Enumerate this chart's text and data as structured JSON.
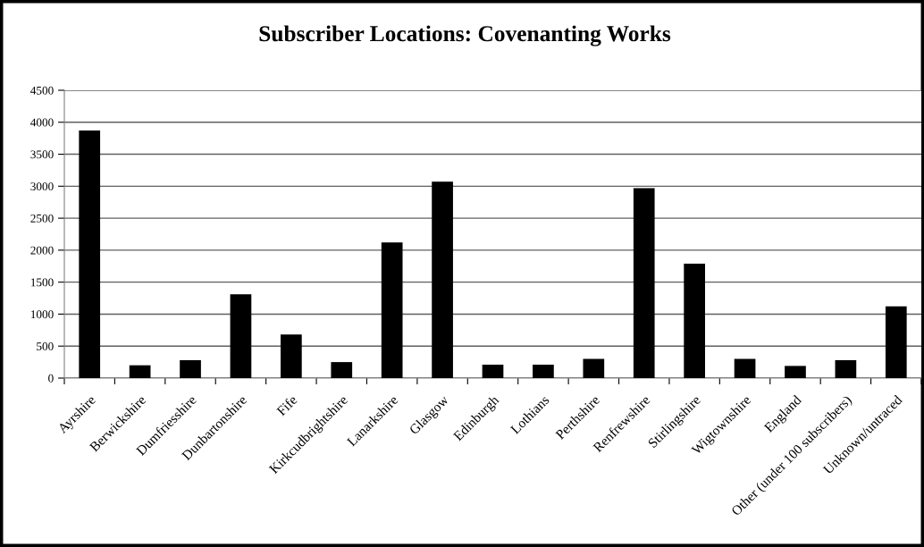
{
  "chart_data": {
    "type": "bar",
    "title": "Subscriber Locations: Covenanting Works",
    "categories": [
      "Ayrshire",
      "Berwickshire",
      "Dumfriesshire",
      "Dunbartonshire",
      "Fife",
      "Kirkcudbrightshire",
      "Lanarkshire",
      "Glasgow",
      "Edinburgh",
      "Lothians",
      "Perthshire",
      "Renfrewshire",
      "Stirlingshire",
      "Wigtownshire",
      "England",
      "Other (under 100 subscribers)",
      "Unknown/untraced"
    ],
    "values": [
      3870,
      200,
      280,
      1310,
      680,
      250,
      2120,
      3070,
      210,
      210,
      300,
      2970,
      1790,
      300,
      190,
      280,
      1120
    ],
    "color": "#000000",
    "ylim": [
      0,
      4500
    ],
    "yticks": [
      0,
      500,
      1000,
      1500,
      2000,
      2500,
      3000,
      3500,
      4000,
      4500
    ],
    "grid": "y"
  }
}
